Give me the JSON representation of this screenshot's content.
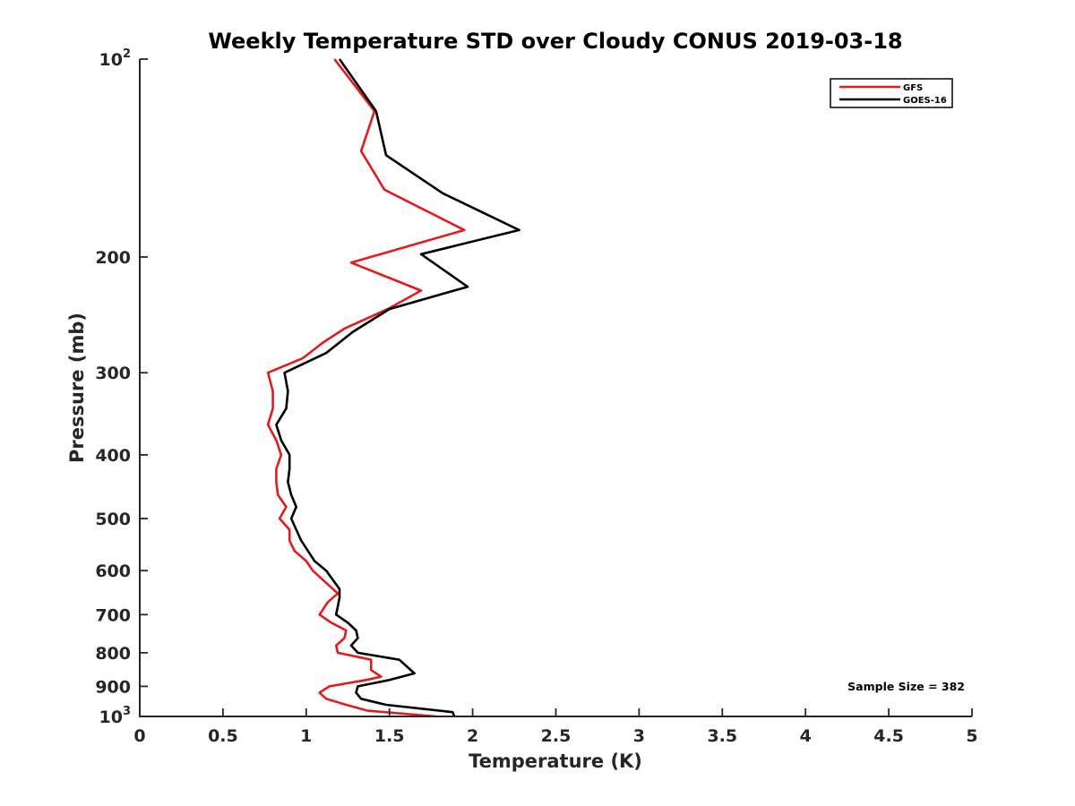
{
  "chart_data": {
    "type": "line",
    "title": "Weekly Temperature STD over Cloudy CONUS 2019-03-18",
    "xlabel": "Temperature (K)",
    "ylabel": "Pressure (mb)",
    "xlim": [
      0,
      5
    ],
    "ylim": [
      100,
      1000
    ],
    "y_scale": "log",
    "y_reversed": true,
    "grid": false,
    "legend_position": "top-right",
    "x_ticks": [
      "0",
      "0.5",
      "1",
      "1.5",
      "2",
      "2.5",
      "3",
      "3.5",
      "4",
      "4.5",
      "5"
    ],
    "y_ticks": [
      {
        "value": 100,
        "base": "10",
        "exp": "2"
      },
      {
        "value": 200,
        "label": "200"
      },
      {
        "value": 300,
        "label": "300"
      },
      {
        "value": 400,
        "label": "400"
      },
      {
        "value": 500,
        "label": "500"
      },
      {
        "value": 600,
        "label": "600"
      },
      {
        "value": 700,
        "label": "700"
      },
      {
        "value": 800,
        "label": "800"
      },
      {
        "value": 900,
        "label": "900"
      },
      {
        "value": 1000,
        "base": "10",
        "exp": "3"
      }
    ],
    "annotation": "Sample Size = 382",
    "series": [
      {
        "name": "GFS",
        "color": "#e41a1c",
        "points": [
          [
            1.17,
            100
          ],
          [
            1.41,
            120
          ],
          [
            1.33,
            138
          ],
          [
            1.47,
            158
          ],
          [
            1.95,
            182
          ],
          [
            1.27,
            204
          ],
          [
            1.69,
            225
          ],
          [
            1.49,
            240
          ],
          [
            1.23,
            257
          ],
          [
            1.1,
            270
          ],
          [
            0.98,
            285
          ],
          [
            0.77,
            300
          ],
          [
            0.8,
            320
          ],
          [
            0.8,
            340
          ],
          [
            0.77,
            360
          ],
          [
            0.82,
            380
          ],
          [
            0.85,
            400
          ],
          [
            0.82,
            420
          ],
          [
            0.82,
            440
          ],
          [
            0.83,
            460
          ],
          [
            0.88,
            480
          ],
          [
            0.84,
            500
          ],
          [
            0.9,
            520
          ],
          [
            0.9,
            540
          ],
          [
            0.93,
            560
          ],
          [
            1.0,
            580
          ],
          [
            1.04,
            600
          ],
          [
            1.1,
            620
          ],
          [
            1.19,
            650
          ],
          [
            1.13,
            670
          ],
          [
            1.08,
            700
          ],
          [
            1.15,
            720
          ],
          [
            1.24,
            740
          ],
          [
            1.23,
            760
          ],
          [
            1.18,
            780
          ],
          [
            1.19,
            800
          ],
          [
            1.39,
            820
          ],
          [
            1.39,
            850
          ],
          [
            1.45,
            870
          ],
          [
            1.36,
            880
          ],
          [
            1.14,
            900
          ],
          [
            1.08,
            920
          ],
          [
            1.12,
            940
          ],
          [
            1.24,
            960
          ],
          [
            1.37,
            980
          ],
          [
            1.78,
            1000
          ]
        ]
      },
      {
        "name": "GOES-16",
        "color": "#000000",
        "points": [
          [
            1.2,
            100
          ],
          [
            1.42,
            120
          ],
          [
            1.48,
            140
          ],
          [
            1.82,
            160
          ],
          [
            2.28,
            182
          ],
          [
            1.69,
            198
          ],
          [
            1.97,
            222
          ],
          [
            1.5,
            240
          ],
          [
            1.28,
            260
          ],
          [
            1.12,
            280
          ],
          [
            0.87,
            300
          ],
          [
            0.89,
            320
          ],
          [
            0.88,
            340
          ],
          [
            0.82,
            360
          ],
          [
            0.85,
            380
          ],
          [
            0.9,
            400
          ],
          [
            0.9,
            420
          ],
          [
            0.89,
            440
          ],
          [
            0.91,
            460
          ],
          [
            0.94,
            480
          ],
          [
            0.91,
            500
          ],
          [
            0.97,
            540
          ],
          [
            1.05,
            580
          ],
          [
            1.12,
            600
          ],
          [
            1.2,
            640
          ],
          [
            1.2,
            660
          ],
          [
            1.19,
            680
          ],
          [
            1.18,
            700
          ],
          [
            1.25,
            720
          ],
          [
            1.3,
            740
          ],
          [
            1.31,
            760
          ],
          [
            1.27,
            780
          ],
          [
            1.31,
            800
          ],
          [
            1.56,
            820
          ],
          [
            1.65,
            860
          ],
          [
            1.5,
            880
          ],
          [
            1.31,
            900
          ],
          [
            1.3,
            920
          ],
          [
            1.33,
            940
          ],
          [
            1.48,
            960
          ],
          [
            1.88,
            985
          ],
          [
            1.89,
            1000
          ]
        ]
      }
    ]
  }
}
